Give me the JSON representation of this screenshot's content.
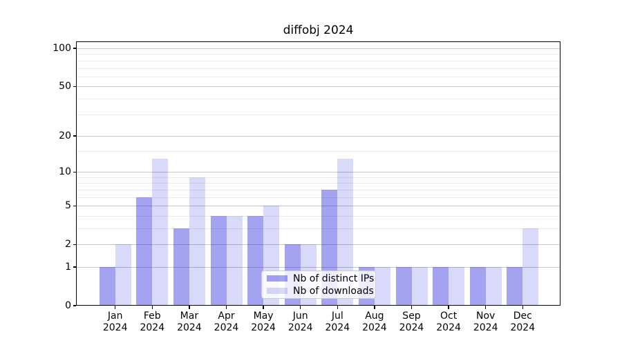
{
  "title": "diffobj 2024",
  "legend": {
    "items": [
      {
        "label": "Nb of distinct IPs",
        "series_key": "ips"
      },
      {
        "label": "Nb of downloads",
        "series_key": "downloads"
      }
    ],
    "position": "lower center"
  },
  "colors": {
    "ips_bar": "rgba(0,0,215,0.36)",
    "downloads_bar": "rgba(0,0,215,0.15)",
    "major_gridline": "#c6c6c6",
    "minor_gridline": "#ebebeb",
    "spine": "#000000",
    "text": "#000000",
    "legend_border": "#cccccc",
    "legend_background": "rgba(255,255,255,0.8)"
  },
  "chart_data": {
    "type": "bar",
    "title": "diffobj 2024",
    "categories": [
      "Jan 2024",
      "Feb 2024",
      "Mar 2024",
      "Apr 2024",
      "May 2024",
      "Jun 2024",
      "Jul 2024",
      "Aug 2024",
      "Sep 2024",
      "Oct 2024",
      "Nov 2024",
      "Dec 2024"
    ],
    "series": [
      {
        "name": "Nb of distinct IPs",
        "values": [
          1,
          6,
          3,
          4,
          4,
          2,
          7,
          1,
          1,
          1,
          1,
          1
        ]
      },
      {
        "name": "Nb of downloads",
        "values": [
          2,
          13,
          9,
          4,
          5,
          2,
          13,
          1,
          1,
          1,
          1,
          3
        ]
      }
    ],
    "xlabel": "",
    "ylabel": "",
    "yscale": "log1p",
    "y_tick_values": [
      0,
      1,
      2,
      5,
      10,
      20,
      50,
      100
    ],
    "y_tick_labels": [
      "0",
      "1",
      "2",
      "5",
      "10",
      "20",
      "50",
      "100"
    ],
    "y_minor_gridline_values": [
      3,
      4,
      6,
      7,
      8,
      9,
      15,
      30,
      40,
      60,
      70,
      80,
      90
    ],
    "ylim": [
      0,
      113.4
    ],
    "grid": true,
    "legend_position": "lower center"
  }
}
